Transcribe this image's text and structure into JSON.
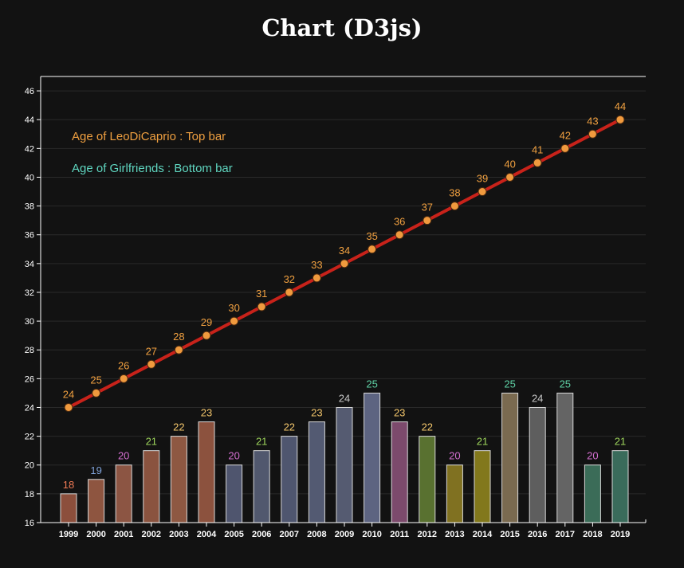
{
  "title": "Chart (D3js)",
  "chart_data": {
    "type": "bar",
    "title": "Chart (D3js)",
    "categories": [
      "1999",
      "2000",
      "2001",
      "2002",
      "2003",
      "2004",
      "2005",
      "2006",
      "2007",
      "2008",
      "2009",
      "2010",
      "2011",
      "2012",
      "2013",
      "2014",
      "2015",
      "2016",
      "2017",
      "2018",
      "2019"
    ],
    "series": [
      {
        "type": "line",
        "name": "Age of LeoDiCaprio : Top bar",
        "values": [
          24,
          25,
          26,
          27,
          28,
          29,
          30,
          31,
          32,
          33,
          34,
          35,
          36,
          37,
          38,
          39,
          40,
          41,
          42,
          43,
          44
        ],
        "line_color": "#c8221a",
        "point_color": "#f09a3e",
        "label_color": "#f0a040"
      },
      {
        "type": "bar",
        "name": "Age of Girlfriends : Bottom bar",
        "values": [
          18,
          19,
          20,
          21,
          22,
          23,
          20,
          21,
          22,
          23,
          24,
          25,
          23,
          22,
          20,
          21,
          25,
          24,
          25,
          20,
          21
        ],
        "bar_colors": [
          "#8c4f3c",
          "#8e5540",
          "#8c5543",
          "#8a533f",
          "#8e5842",
          "#8c523e",
          "#4f556e",
          "#51586e",
          "#4f566f",
          "#535a72",
          "#555b71",
          "#5d6481",
          "#7c4a6c",
          "#597130",
          "#807121",
          "#82781c",
          "#7a6a50",
          "#5e5e5e",
          "#646464",
          "#3b6c58",
          "#3a6b5b"
        ],
        "label_colors": [
          "#ef7a55",
          "#7fa2d8",
          "#d46fd0",
          "#9ed55c",
          "#f2c56b",
          "#f2c56b",
          "#d46fd0",
          "#9ed55c",
          "#f2c56b",
          "#f2c56b",
          "#c8c8c8",
          "#5fd1a5",
          "#f2c56b",
          "#f2c56b",
          "#d46fd0",
          "#9ed55c",
          "#5fd1a5",
          "#c8c8c8",
          "#5fd1a5",
          "#d46fd0",
          "#9ed55c"
        ]
      }
    ],
    "ylim": [
      16,
      47
    ],
    "yticks": [
      16,
      18,
      20,
      22,
      24,
      26,
      28,
      30,
      32,
      34,
      36,
      38,
      40,
      42,
      44,
      46
    ],
    "grid": true,
    "legend_position": "top-left",
    "legend_colors": [
      "#f0a040",
      "#5fd6c0"
    ],
    "xlabel": "",
    "ylabel": ""
  }
}
